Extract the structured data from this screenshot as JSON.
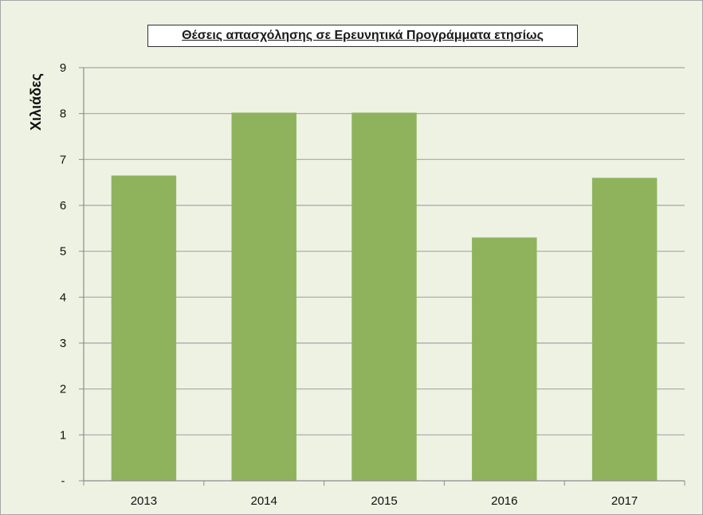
{
  "chart_data": {
    "type": "bar",
    "title": "Θέσεις απασχόλησης σε Ερευνητικά Προγράμματα ετησίως",
    "xlabel": "",
    "ylabel": "Χιλιάδες",
    "categories": [
      "2013",
      "2014",
      "2015",
      "2016",
      "2017"
    ],
    "values": [
      6.65,
      8.02,
      8.02,
      5.3,
      6.6
    ],
    "ylim": [
      0,
      9
    ],
    "yticks": [
      "-",
      "1",
      "2",
      "3",
      "4",
      "5",
      "6",
      "7",
      "8",
      "9"
    ],
    "grid": true,
    "legend": "none",
    "colors": {
      "bar": "#8fb35c",
      "background": "#eef2e3",
      "grid": "#a6a6a6",
      "axis": "#8c8c8c"
    }
  }
}
